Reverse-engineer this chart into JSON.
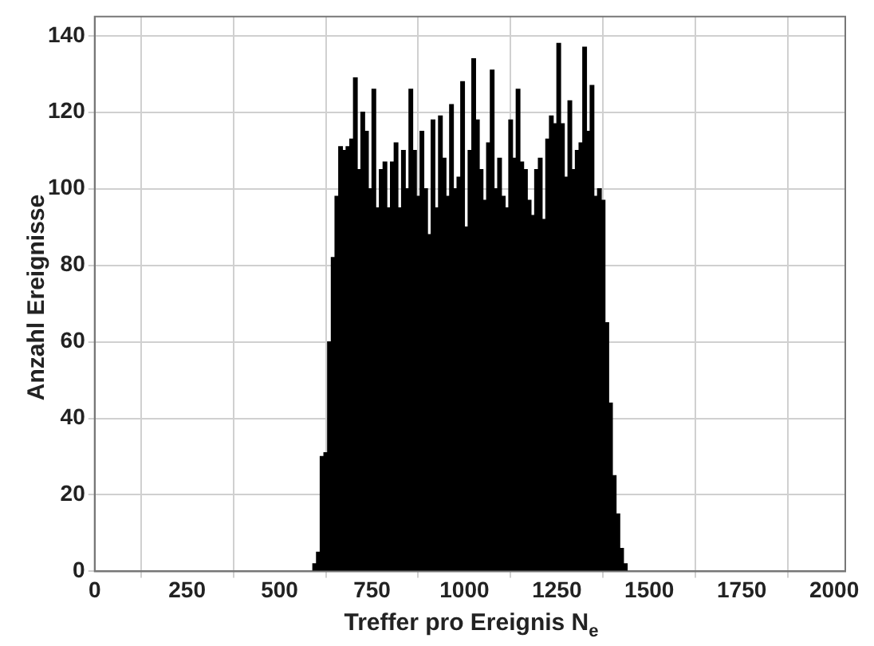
{
  "chart_data": {
    "type": "histogram",
    "xlabel": "Treffer pro Ereignis N$_{e}$",
    "ylabel": "Anzahl Ereignisse",
    "color": "#000000",
    "bins": [
      590,
      600,
      610,
      620,
      630,
      640,
      650,
      660,
      670,
      680,
      690,
      700,
      710,
      720,
      730,
      740,
      750,
      760,
      770,
      780,
      790,
      800,
      810,
      820,
      830,
      840,
      850,
      860,
      870,
      880,
      890,
      900,
      910,
      920,
      930,
      940,
      950,
      960,
      970,
      980,
      990,
      1000,
      1010,
      1020,
      1030,
      1040,
      1050,
      1060,
      1070,
      1080,
      1090,
      1100,
      1110,
      1120,
      1130,
      1140,
      1150,
      1160,
      1170,
      1180,
      1190,
      1200,
      1210,
      1220,
      1230,
      1240,
      1250,
      1260,
      1270,
      1280,
      1290,
      1300,
      1310,
      1320,
      1330,
      1340,
      1350,
      1360,
      1370,
      1380,
      1390,
      1400,
      1410,
      1420,
      1430,
      1440
    ],
    "values": [
      2,
      5,
      30,
      31,
      60,
      82,
      98,
      111,
      110,
      111,
      113,
      129,
      105,
      120,
      115,
      100,
      126,
      95,
      105,
      107,
      95,
      107,
      112,
      95,
      110,
      100,
      126,
      110,
      98,
      115,
      100,
      88,
      118,
      95,
      119,
      108,
      98,
      122,
      100,
      103,
      128,
      90,
      110,
      134,
      118,
      105,
      97,
      112,
      131,
      100,
      108,
      98,
      95,
      118,
      108,
      126,
      107,
      105,
      97,
      93,
      105,
      108,
      92,
      113,
      119,
      117,
      138,
      117,
      103,
      123,
      105,
      110,
      112,
      137,
      115,
      127,
      98,
      100,
      97,
      65,
      44,
      25,
      15,
      6,
      2
    ],
    "xlim": [
      0,
      2030
    ],
    "xticks": [
      0,
      250,
      500,
      750,
      1000,
      1250,
      1500,
      1750,
      2000
    ],
    "ylim": [
      0,
      145
    ],
    "yticks": [
      0,
      20,
      40,
      60,
      80,
      100,
      120,
      140
    ],
    "grid": true
  }
}
